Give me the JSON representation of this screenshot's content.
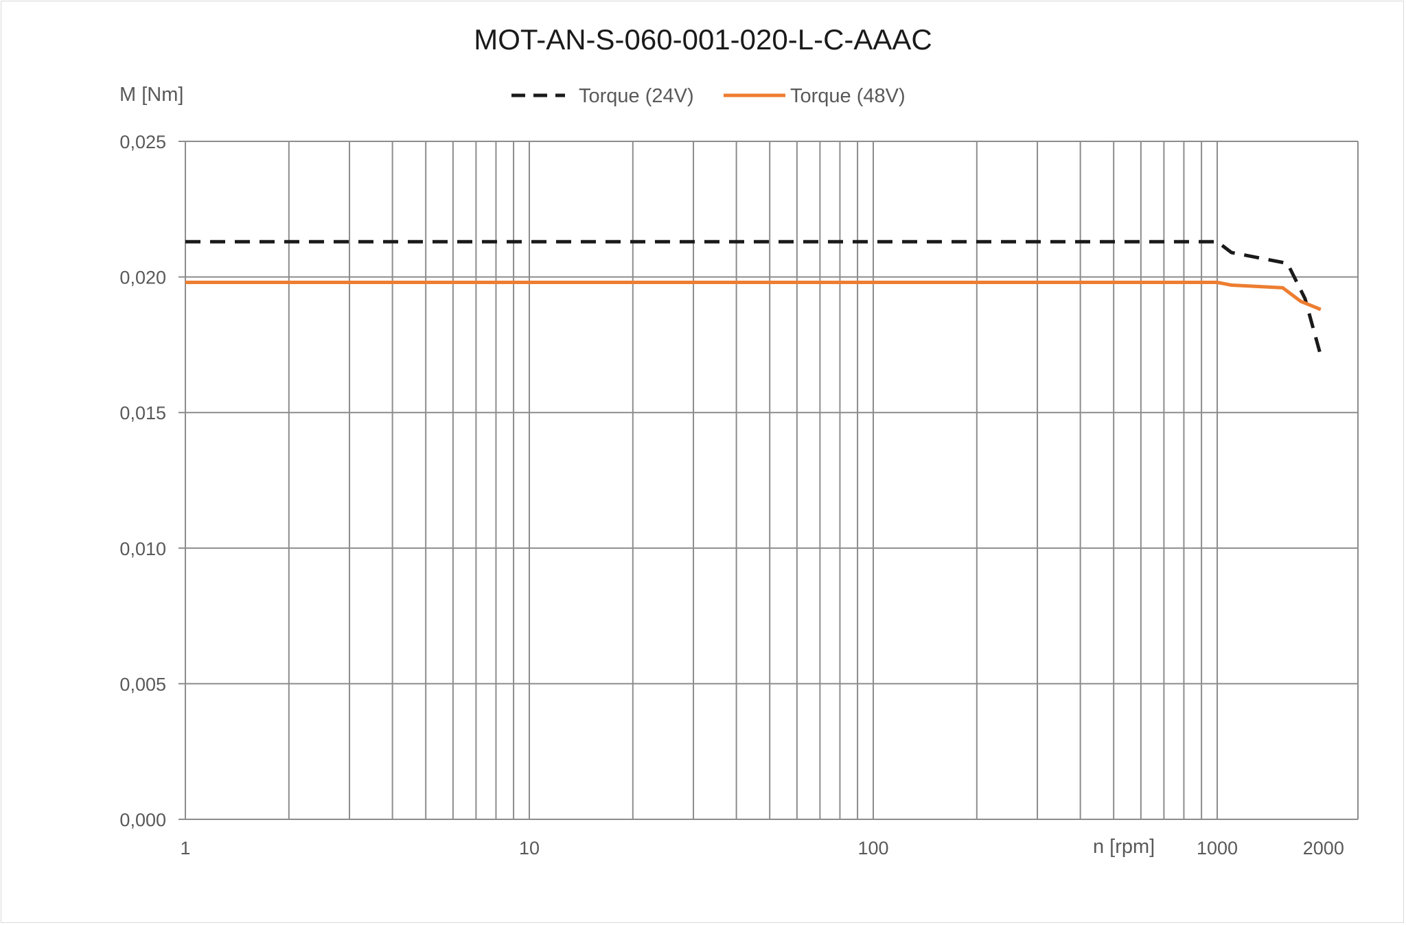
{
  "chart_data": {
    "type": "line",
    "title": "MOT-AN-S-060-001-020-L-C-AAAC",
    "ylabel": "M [Nm]",
    "xlabel": "n [rpm]",
    "x_scale": "log",
    "xlim": [
      1,
      2000
    ],
    "ylim": [
      0,
      0.025
    ],
    "grid": true,
    "legend_position": "top",
    "x_tick_labels": [
      "1",
      "10",
      "100",
      "1000",
      "2000"
    ],
    "y_tick_labels": [
      "0,000",
      "0,005",
      "0,010",
      "0,015",
      "0,020",
      "0,025"
    ],
    "y_ticks": [
      0,
      0.005,
      0.01,
      0.015,
      0.02,
      0.025
    ],
    "series": [
      {
        "name": "Torque (24V)",
        "color": "#1a1a1a",
        "style": "dashed",
        "x": [
          1,
          1000,
          1100,
          1600,
          1800,
          2000
        ],
        "y": [
          0.0213,
          0.0213,
          0.0209,
          0.0205,
          0.0192,
          0.0171
        ]
      },
      {
        "name": "Torque (48V)",
        "color": "#ed7d31",
        "style": "solid",
        "x": [
          1,
          1000,
          1100,
          1300,
          1550,
          1750,
          2000
        ],
        "y": [
          0.0198,
          0.0198,
          0.0197,
          0.01965,
          0.0196,
          0.0191,
          0.0188
        ]
      }
    ]
  }
}
